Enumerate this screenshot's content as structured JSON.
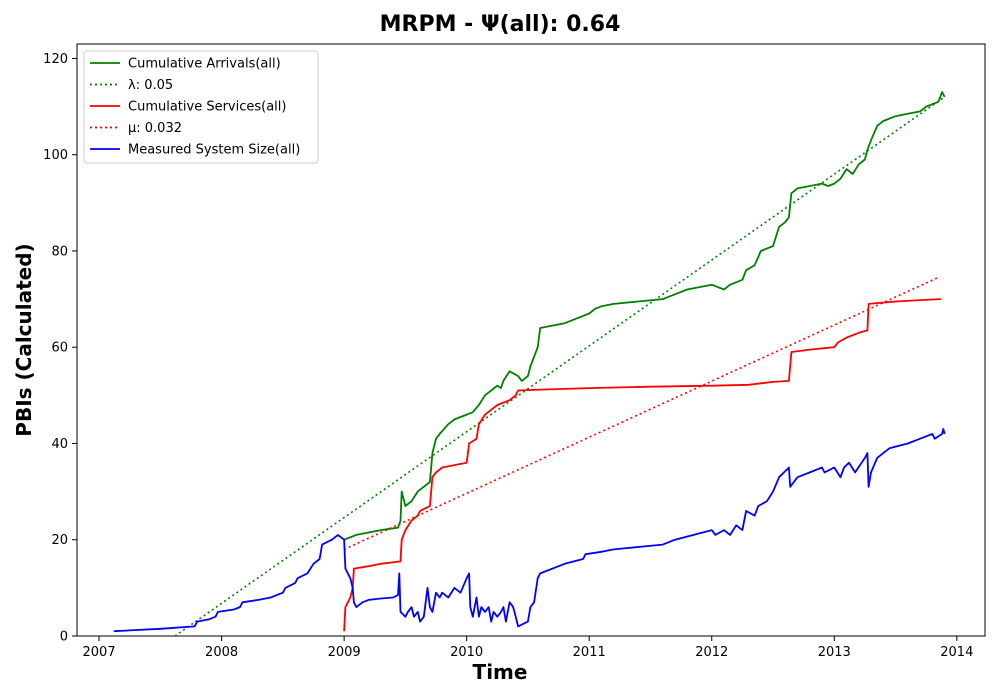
{
  "chart_data": {
    "type": "line",
    "title": "MRPM -  Ψ(all): 0.64",
    "xlabel": "Time",
    "ylabel": "PBIs (Calculated)",
    "x_type": "year",
    "xlim": [
      2006.82,
      2014.23
    ],
    "ylim": [
      0,
      123
    ],
    "xticks": [
      2007,
      2008,
      2009,
      2010,
      2011,
      2012,
      2013,
      2014
    ],
    "yticks": [
      0,
      20,
      40,
      60,
      80,
      100,
      120
    ],
    "grid": false,
    "legend_position": "top-left",
    "series": [
      {
        "name": "Cumulative Arrivals(all)",
        "color": "#008000",
        "style": "solid",
        "points": [
          [
            2009.0,
            20
          ],
          [
            2009.1,
            21
          ],
          [
            2009.2,
            21.5
          ],
          [
            2009.3,
            22
          ],
          [
            2009.44,
            22.5
          ],
          [
            2009.46,
            24
          ],
          [
            2009.47,
            30
          ],
          [
            2009.5,
            27
          ],
          [
            2009.55,
            28
          ],
          [
            2009.6,
            30
          ],
          [
            2009.65,
            31
          ],
          [
            2009.7,
            32
          ],
          [
            2009.72,
            38
          ],
          [
            2009.75,
            41
          ],
          [
            2009.78,
            42
          ],
          [
            2009.85,
            44
          ],
          [
            2009.9,
            45
          ],
          [
            2009.95,
            45.5
          ],
          [
            2010.0,
            46
          ],
          [
            2010.05,
            46.5
          ],
          [
            2010.1,
            48
          ],
          [
            2010.15,
            50
          ],
          [
            2010.2,
            51
          ],
          [
            2010.25,
            52
          ],
          [
            2010.28,
            51.5
          ],
          [
            2010.3,
            53
          ],
          [
            2010.35,
            55
          ],
          [
            2010.42,
            54
          ],
          [
            2010.45,
            53
          ],
          [
            2010.5,
            54
          ],
          [
            2010.52,
            56
          ],
          [
            2010.58,
            60
          ],
          [
            2010.6,
            64
          ],
          [
            2010.7,
            64.5
          ],
          [
            2010.8,
            65
          ],
          [
            2010.9,
            66
          ],
          [
            2010.95,
            66.5
          ],
          [
            2011.0,
            67
          ],
          [
            2011.05,
            68
          ],
          [
            2011.1,
            68.5
          ],
          [
            2011.2,
            69
          ],
          [
            2011.4,
            69.5
          ],
          [
            2011.6,
            70
          ],
          [
            2011.65,
            70.5
          ],
          [
            2011.7,
            71
          ],
          [
            2011.8,
            72
          ],
          [
            2012.0,
            73
          ],
          [
            2012.1,
            72
          ],
          [
            2012.15,
            73
          ],
          [
            2012.25,
            74
          ],
          [
            2012.28,
            76
          ],
          [
            2012.35,
            77
          ],
          [
            2012.4,
            80
          ],
          [
            2012.5,
            81
          ],
          [
            2012.55,
            85
          ],
          [
            2012.6,
            86
          ],
          [
            2012.63,
            87
          ],
          [
            2012.65,
            92
          ],
          [
            2012.7,
            93
          ],
          [
            2012.8,
            93.5
          ],
          [
            2012.9,
            94
          ],
          [
            2012.95,
            93.5
          ],
          [
            2013.0,
            94
          ],
          [
            2013.05,
            95
          ],
          [
            2013.1,
            97
          ],
          [
            2013.15,
            96
          ],
          [
            2013.2,
            98
          ],
          [
            2013.25,
            99
          ],
          [
            2013.27,
            101
          ],
          [
            2013.3,
            103
          ],
          [
            2013.35,
            106
          ],
          [
            2013.4,
            107
          ],
          [
            2013.5,
            108
          ],
          [
            2013.6,
            108.5
          ],
          [
            2013.7,
            109
          ],
          [
            2013.75,
            110
          ],
          [
            2013.8,
            110.5
          ],
          [
            2013.85,
            111
          ],
          [
            2013.88,
            113
          ],
          [
            2013.9,
            112
          ]
        ]
      },
      {
        "name": "λ: 0.05",
        "color": "#008000",
        "style": "dotted",
        "points": [
          [
            2007.62,
            0
          ],
          [
            2013.9,
            112
          ]
        ]
      },
      {
        "name": "Cumulative Services(all)",
        "color": "#ff0000",
        "style": "solid",
        "points": [
          [
            2009.0,
            1
          ],
          [
            2009.01,
            6
          ],
          [
            2009.05,
            8
          ],
          [
            2009.07,
            10
          ],
          [
            2009.08,
            14
          ],
          [
            2009.2,
            14.5
          ],
          [
            2009.3,
            15
          ],
          [
            2009.46,
            15.5
          ],
          [
            2009.47,
            20
          ],
          [
            2009.5,
            22
          ],
          [
            2009.55,
            24
          ],
          [
            2009.6,
            25
          ],
          [
            2009.62,
            26
          ],
          [
            2009.7,
            27
          ],
          [
            2009.72,
            33
          ],
          [
            2009.75,
            34
          ],
          [
            2009.8,
            35
          ],
          [
            2009.9,
            35.5
          ],
          [
            2010.0,
            36
          ],
          [
            2010.02,
            40
          ],
          [
            2010.08,
            41
          ],
          [
            2010.1,
            44
          ],
          [
            2010.15,
            46
          ],
          [
            2010.2,
            47
          ],
          [
            2010.25,
            48
          ],
          [
            2010.3,
            48.5
          ],
          [
            2010.35,
            49
          ],
          [
            2010.4,
            50
          ],
          [
            2010.42,
            51
          ],
          [
            2010.6,
            51.2
          ],
          [
            2011.0,
            51.5
          ],
          [
            2011.5,
            51.8
          ],
          [
            2012.0,
            52
          ],
          [
            2012.3,
            52.2
          ],
          [
            2012.5,
            52.8
          ],
          [
            2012.63,
            53
          ],
          [
            2012.65,
            59
          ],
          [
            2012.8,
            59.5
          ],
          [
            2013.0,
            60
          ],
          [
            2013.03,
            61
          ],
          [
            2013.1,
            62
          ],
          [
            2013.2,
            63
          ],
          [
            2013.27,
            63.5
          ],
          [
            2013.28,
            69
          ],
          [
            2013.5,
            69.5
          ],
          [
            2013.7,
            69.8
          ],
          [
            2013.87,
            70
          ]
        ]
      },
      {
        "name": "μ: 0.032",
        "color": "#ff0000",
        "style": "dotted",
        "points": [
          [
            2009.0,
            18
          ],
          [
            2013.85,
            74.5
          ]
        ]
      },
      {
        "name": "Measured System Size(all)",
        "color": "#0000ff",
        "style": "solid",
        "points": [
          [
            2007.12,
            1
          ],
          [
            2007.5,
            1.5
          ],
          [
            2007.78,
            2
          ],
          [
            2007.8,
            3
          ],
          [
            2007.9,
            3.5
          ],
          [
            2007.95,
            4
          ],
          [
            2007.97,
            5
          ],
          [
            2008.1,
            5.5
          ],
          [
            2008.15,
            6
          ],
          [
            2008.17,
            7
          ],
          [
            2008.3,
            7.5
          ],
          [
            2008.4,
            8
          ],
          [
            2008.5,
            9
          ],
          [
            2008.52,
            10
          ],
          [
            2008.6,
            11
          ],
          [
            2008.62,
            12
          ],
          [
            2008.7,
            13
          ],
          [
            2008.75,
            15
          ],
          [
            2008.8,
            16
          ],
          [
            2008.82,
            19
          ],
          [
            2008.9,
            20
          ],
          [
            2008.95,
            21
          ],
          [
            2009.0,
            20
          ],
          [
            2009.01,
            14
          ],
          [
            2009.05,
            12
          ],
          [
            2009.07,
            10
          ],
          [
            2009.08,
            7
          ],
          [
            2009.1,
            6
          ],
          [
            2009.15,
            7
          ],
          [
            2009.2,
            7.5
          ],
          [
            2009.3,
            7.8
          ],
          [
            2009.4,
            8
          ],
          [
            2009.44,
            8.5
          ],
          [
            2009.45,
            13
          ],
          [
            2009.46,
            5
          ],
          [
            2009.5,
            4
          ],
          [
            2009.52,
            5
          ],
          [
            2009.55,
            6
          ],
          [
            2009.57,
            4
          ],
          [
            2009.6,
            5
          ],
          [
            2009.62,
            3
          ],
          [
            2009.65,
            4
          ],
          [
            2009.68,
            10
          ],
          [
            2009.7,
            6
          ],
          [
            2009.72,
            5
          ],
          [
            2009.75,
            9
          ],
          [
            2009.78,
            8
          ],
          [
            2009.8,
            9
          ],
          [
            2009.85,
            8
          ],
          [
            2009.9,
            10
          ],
          [
            2009.95,
            9
          ],
          [
            2010.0,
            12
          ],
          [
            2010.02,
            13
          ],
          [
            2010.03,
            6
          ],
          [
            2010.05,
            4
          ],
          [
            2010.08,
            8
          ],
          [
            2010.1,
            4
          ],
          [
            2010.12,
            6
          ],
          [
            2010.15,
            5
          ],
          [
            2010.18,
            6
          ],
          [
            2010.2,
            3
          ],
          [
            2010.22,
            5
          ],
          [
            2010.25,
            4
          ],
          [
            2010.28,
            5
          ],
          [
            2010.3,
            6
          ],
          [
            2010.32,
            3
          ],
          [
            2010.35,
            7
          ],
          [
            2010.38,
            6
          ],
          [
            2010.4,
            4
          ],
          [
            2010.42,
            2
          ],
          [
            2010.5,
            3
          ],
          [
            2010.52,
            6
          ],
          [
            2010.55,
            7
          ],
          [
            2010.58,
            12
          ],
          [
            2010.6,
            13
          ],
          [
            2010.8,
            15
          ],
          [
            2010.95,
            16
          ],
          [
            2010.97,
            17
          ],
          [
            2011.1,
            17.5
          ],
          [
            2011.2,
            18
          ],
          [
            2011.4,
            18.5
          ],
          [
            2011.6,
            19
          ],
          [
            2011.7,
            20
          ],
          [
            2012.0,
            22
          ],
          [
            2012.03,
            21
          ],
          [
            2012.1,
            22
          ],
          [
            2012.15,
            21
          ],
          [
            2012.2,
            23
          ],
          [
            2012.25,
            22
          ],
          [
            2012.28,
            26
          ],
          [
            2012.35,
            25
          ],
          [
            2012.38,
            27
          ],
          [
            2012.45,
            28
          ],
          [
            2012.5,
            30
          ],
          [
            2012.55,
            33
          ],
          [
            2012.63,
            35
          ],
          [
            2012.64,
            31
          ],
          [
            2012.7,
            33
          ],
          [
            2012.8,
            34
          ],
          [
            2012.9,
            35
          ],
          [
            2012.92,
            34
          ],
          [
            2013.0,
            35
          ],
          [
            2013.05,
            33
          ],
          [
            2013.08,
            35
          ],
          [
            2013.12,
            36
          ],
          [
            2013.17,
            34
          ],
          [
            2013.25,
            37
          ],
          [
            2013.27,
            38
          ],
          [
            2013.28,
            31
          ],
          [
            2013.3,
            34
          ],
          [
            2013.35,
            37
          ],
          [
            2013.4,
            38
          ],
          [
            2013.45,
            39
          ],
          [
            2013.6,
            40
          ],
          [
            2013.7,
            41
          ],
          [
            2013.8,
            42
          ],
          [
            2013.82,
            41
          ],
          [
            2013.88,
            42
          ],
          [
            2013.89,
            43
          ],
          [
            2013.9,
            42
          ]
        ]
      }
    ]
  }
}
